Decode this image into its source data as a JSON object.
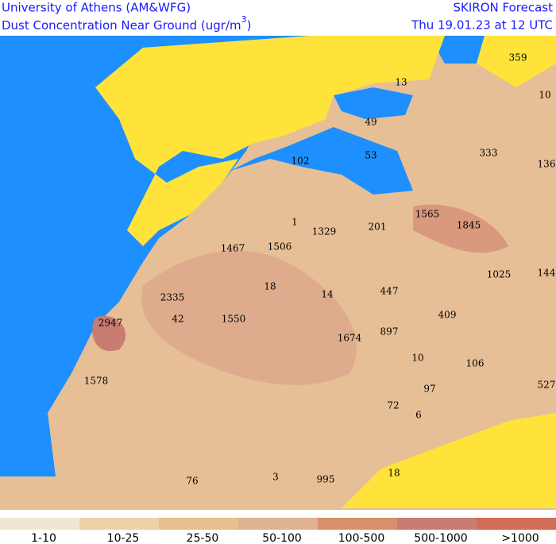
{
  "header": {
    "left_line1": "University of Athens (AM&WFG)",
    "left_line2": "Dust Concentration Near Ground (ugr/m",
    "left_line2_superscript": "3",
    "left_line2_end": ")",
    "right_line1": "SKIRON Forecast",
    "right_line2": "Thu 19.01.23 at 12 UTC"
  },
  "map": {
    "labels": [
      "359",
      "13",
      "10",
      "49",
      "333",
      "136",
      "53",
      "102",
      "1",
      "1565",
      "1845",
      "1329",
      "201",
      "1467",
      "1506",
      "1025",
      "144",
      "18",
      "14",
      "447",
      "2335",
      "409",
      "42",
      "1550",
      "2947",
      "1674",
      "897",
      "10",
      "106",
      "1578",
      "527",
      "97",
      "72",
      "6",
      "18",
      "76",
      "3",
      "995"
    ]
  },
  "legend": [
    {
      "label": "1-10",
      "color": "#f2e6d2"
    },
    {
      "label": "10-25",
      "color": "#ebd2a6"
    },
    {
      "label": "25-50",
      "color": "#e8bf8e"
    },
    {
      "label": "50-100",
      "color": "#dfb292"
    },
    {
      "label": "100-500",
      "color": "#d98f6b"
    },
    {
      "label": "500-1000",
      "color": "#c97c72"
    },
    {
      "label": ">1000",
      "color": "#d26e58"
    }
  ]
}
